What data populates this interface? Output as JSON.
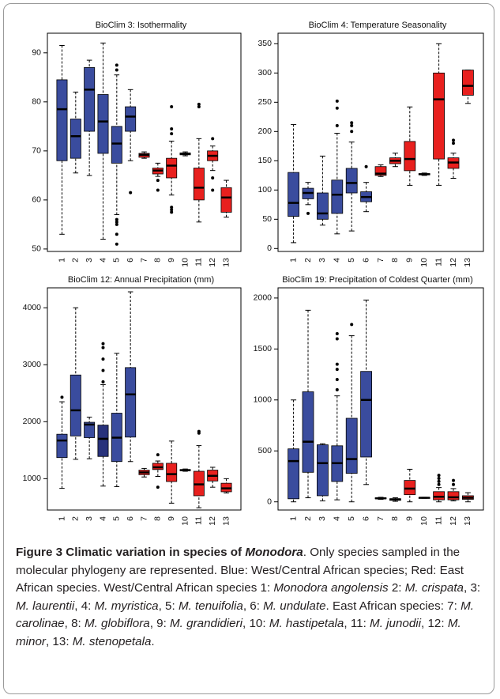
{
  "chart_data": [
    {
      "type": "box",
      "title": "BioClim 3: Isothermality",
      "categories": [
        "1",
        "2",
        "3",
        "4",
        "5",
        "6",
        "7",
        "8",
        "9",
        "10",
        "11",
        "12",
        "13"
      ],
      "box_colors": [
        "#3a4c9e",
        "#3a4c9e",
        "#3a4c9e",
        "#3a4c9e",
        "#3a4c9e",
        "#3a4c9e",
        "#e8201e",
        "#e8201e",
        "#e8201e",
        "#e8201e",
        "#e8201e",
        "#e8201e",
        "#e8201e"
      ],
      "ylim": [
        49.5,
        94
      ],
      "yticks": [
        50,
        60,
        70,
        80,
        90
      ],
      "boxes": [
        {
          "whislo": 53,
          "q1": 68,
          "med": 78.5,
          "q3": 84.5,
          "whishi": 91.5
        },
        {
          "whislo": 65.5,
          "q1": 68.5,
          "med": 73,
          "q3": 76.5,
          "whishi": 82
        },
        {
          "whislo": 65,
          "q1": 74,
          "med": 82.5,
          "q3": 87,
          "whishi": 88.5
        },
        {
          "whislo": 52,
          "q1": 69.5,
          "med": 76,
          "q3": 81.5,
          "whishi": 92
        },
        {
          "whislo": 57,
          "q1": 67.5,
          "med": 71.5,
          "q3": 75,
          "whishi": 85.5,
          "fliers": [
            51,
            53,
            55,
            55.5,
            56,
            86.5,
            87.5
          ]
        },
        {
          "whislo": 68,
          "q1": 74,
          "med": 77,
          "q3": 79,
          "whishi": 82.5,
          "fliers": [
            61.5
          ]
        },
        {
          "whislo": 68.5,
          "q1": 68.7,
          "med": 69.2,
          "q3": 69.5,
          "whishi": 69.8
        },
        {
          "whislo": 64.8,
          "q1": 65.3,
          "med": 66,
          "q3": 66.5,
          "whishi": 67.5,
          "fliers": [
            62,
            64
          ]
        },
        {
          "whislo": 61,
          "q1": 64.5,
          "med": 67,
          "q3": 68.5,
          "whishi": 72,
          "fliers": [
            57.5,
            58,
            58.5,
            73.5,
            74.5,
            79
          ]
        },
        {
          "whislo": 69,
          "q1": 69.2,
          "med": 69.4,
          "q3": 69.6,
          "whishi": 69.8
        },
        {
          "whislo": 55.5,
          "q1": 60,
          "med": 62.5,
          "q3": 66.5,
          "whishi": 72.5,
          "fliers": [
            79,
            79.5
          ]
        },
        {
          "whislo": 66,
          "q1": 68,
          "med": 69,
          "q3": 70,
          "whishi": 71,
          "fliers": [
            72.5,
            64.5,
            62
          ]
        },
        {
          "whislo": 56.5,
          "q1": 57.5,
          "med": 60.5,
          "q3": 62.5,
          "whishi": 64
        }
      ]
    },
    {
      "type": "box",
      "title": "BioClim 4: Temperature Seasonality",
      "categories": [
        "1",
        "2",
        "3",
        "4",
        "5",
        "6",
        "7",
        "8",
        "9",
        "10",
        "11",
        "12",
        "13"
      ],
      "box_colors": [
        "#3a4c9e",
        "#3a4c9e",
        "#3a4c9e",
        "#3a4c9e",
        "#3a4c9e",
        "#3a4c9e",
        "#e8201e",
        "#e8201e",
        "#e8201e",
        "#e8201e",
        "#e8201e",
        "#e8201e",
        "#e8201e"
      ],
      "ylim": [
        -5,
        368
      ],
      "yticks": [
        0,
        50,
        100,
        150,
        200,
        250,
        300,
        350
      ],
      "boxes": [
        {
          "whislo": 10,
          "q1": 55,
          "med": 78,
          "q3": 130,
          "whishi": 212
        },
        {
          "whislo": 75,
          "q1": 85,
          "med": 95,
          "q3": 103,
          "whishi": 113,
          "fliers": [
            60
          ]
        },
        {
          "whislo": 40,
          "q1": 50,
          "med": 60,
          "q3": 95,
          "whishi": 158
        },
        {
          "whislo": 25,
          "q1": 60,
          "med": 92,
          "q3": 117,
          "whishi": 197,
          "fliers": [
            210,
            240,
            252
          ]
        },
        {
          "whislo": 30,
          "q1": 95,
          "med": 112,
          "q3": 137,
          "whishi": 182,
          "fliers": [
            200,
            210,
            215
          ]
        },
        {
          "whislo": 63,
          "q1": 80,
          "med": 88,
          "q3": 97,
          "whishi": 113,
          "fliers": [
            140
          ]
        },
        {
          "whislo": 123,
          "q1": 125,
          "med": 128,
          "q3": 140,
          "whishi": 143
        },
        {
          "whislo": 140,
          "q1": 145,
          "med": 150,
          "q3": 155,
          "whishi": 163
        },
        {
          "whislo": 108,
          "q1": 133,
          "med": 153,
          "q3": 183,
          "whishi": 242
        },
        {
          "whislo": 125,
          "q1": 126,
          "med": 127,
          "q3": 128,
          "whishi": 129
        },
        {
          "whislo": 108,
          "q1": 153,
          "med": 255,
          "q3": 300,
          "whishi": 350
        },
        {
          "whislo": 120,
          "q1": 137,
          "med": 147,
          "q3": 155,
          "whishi": 163,
          "fliers": [
            185,
            180
          ]
        },
        {
          "whislo": 248,
          "q1": 262,
          "med": 278,
          "q3": 305,
          "whishi": 305
        }
      ]
    },
    {
      "type": "box",
      "title": "BioClim 12: Annual Precipitation (mm)",
      "categories": [
        "1",
        "2",
        "3",
        "4",
        "5",
        "6",
        "7",
        "8",
        "9",
        "10",
        "11",
        "12",
        "13"
      ],
      "box_colors": [
        "#3a4c9e",
        "#3a4c9e",
        "#3a4c9e",
        "#28327c",
        "#3a4c9e",
        "#3a4c9e",
        "#e8201e",
        "#e8201e",
        "#e8201e",
        "#e8201e",
        "#e8201e",
        "#e8201e",
        "#e8201e"
      ],
      "ylim": [
        450,
        4350
      ],
      "yticks": [
        1000,
        2000,
        3000,
        4000
      ],
      "boxes": [
        {
          "whislo": 830,
          "q1": 1370,
          "med": 1670,
          "q3": 1780,
          "whishi": 2350,
          "fliers": [
            2430
          ]
        },
        {
          "whislo": 1340,
          "q1": 1750,
          "med": 2200,
          "q3": 2820,
          "whishi": 4000
        },
        {
          "whislo": 1350,
          "q1": 1720,
          "med": 1950,
          "q3": 1990,
          "whishi": 2080
        },
        {
          "whislo": 870,
          "q1": 1390,
          "med": 1700,
          "q3": 1940,
          "whishi": 2650,
          "fliers": [
            2700,
            2900,
            3100,
            3300,
            3370
          ]
        },
        {
          "whislo": 860,
          "q1": 1300,
          "med": 1720,
          "q3": 2150,
          "whishi": 3200
        },
        {
          "whislo": 1300,
          "q1": 1730,
          "med": 2480,
          "q3": 2950,
          "whishi": 4280
        },
        {
          "whislo": 1030,
          "q1": 1070,
          "med": 1110,
          "q3": 1150,
          "whishi": 1180
        },
        {
          "whislo": 1040,
          "q1": 1160,
          "med": 1200,
          "q3": 1270,
          "whishi": 1310,
          "fliers": [
            850,
            1420
          ]
        },
        {
          "whislo": 570,
          "q1": 950,
          "med": 1080,
          "q3": 1270,
          "whishi": 1660
        },
        {
          "whislo": 1130,
          "q1": 1140,
          "med": 1150,
          "q3": 1160,
          "whishi": 1170
        },
        {
          "whislo": 490,
          "q1": 700,
          "med": 900,
          "q3": 1130,
          "whishi": 1580,
          "fliers": [
            1800,
            1830
          ]
        },
        {
          "whislo": 850,
          "q1": 960,
          "med": 1050,
          "q3": 1150,
          "whishi": 1200
        },
        {
          "whislo": 750,
          "q1": 770,
          "med": 830,
          "q3": 920,
          "whishi": 1000
        }
      ]
    },
    {
      "type": "box",
      "title": "BioClim 19: Precipitation of Coldest Quarter (mm)",
      "categories": [
        "1",
        "2",
        "3",
        "4",
        "5",
        "6",
        "7",
        "8",
        "9",
        "10",
        "11",
        "12",
        "13"
      ],
      "box_colors": [
        "#3a4c9e",
        "#3a4c9e",
        "#3a4c9e",
        "#3a4c9e",
        "#3a4c9e",
        "#3a4c9e",
        "#e8201e",
        "#e8201e",
        "#e8201e",
        "#e8201e",
        "#e8201e",
        "#e8201e",
        "#e8201e"
      ],
      "ylim": [
        -80,
        2100
      ],
      "yticks": [
        0,
        500,
        1000,
        1500,
        2000
      ],
      "boxes": [
        {
          "whislo": 0,
          "q1": 30,
          "med": 400,
          "q3": 520,
          "whishi": 1000
        },
        {
          "whislo": 40,
          "q1": 290,
          "med": 590,
          "q3": 1080,
          "whishi": 1880
        },
        {
          "whislo": 10,
          "q1": 60,
          "med": 380,
          "q3": 560,
          "whishi": 570
        },
        {
          "whislo": 20,
          "q1": 200,
          "med": 380,
          "q3": 550,
          "whishi": 1040,
          "fliers": [
            1100,
            1200,
            1300,
            1350,
            1600,
            1650
          ]
        },
        {
          "whislo": 0,
          "q1": 280,
          "med": 420,
          "q3": 820,
          "whishi": 1630,
          "fliers": [
            1740
          ]
        },
        {
          "whislo": 170,
          "q1": 440,
          "med": 1000,
          "q3": 1280,
          "whishi": 1980
        },
        {
          "whislo": 25,
          "q1": 30,
          "med": 35,
          "q3": 40,
          "whishi": 45
        },
        {
          "whislo": 5,
          "q1": 15,
          "med": 25,
          "q3": 30,
          "whishi": 40
        },
        {
          "whislo": 0,
          "q1": 70,
          "med": 130,
          "q3": 210,
          "whishi": 320
        },
        {
          "whislo": 35,
          "q1": 38,
          "med": 40,
          "q3": 42,
          "whishi": 45
        },
        {
          "whislo": 0,
          "q1": 20,
          "med": 50,
          "q3": 100,
          "whishi": 140,
          "fliers": [
            170,
            200,
            230,
            260
          ]
        },
        {
          "whislo": 10,
          "q1": 20,
          "med": 45,
          "q3": 100,
          "whishi": 130,
          "fliers": [
            170,
            210
          ]
        },
        {
          "whislo": 0,
          "q1": 25,
          "med": 40,
          "q3": 60,
          "whishi": 90
        }
      ]
    }
  ],
  "caption": [
    {
      "text": "Figure 3 Climatic variation in species of ",
      "style": "bold"
    },
    {
      "text": "Monodora",
      "style": "bold-italic"
    },
    {
      "text": ". Only species sampled in the molecular phylogeny are represented. Blue: West/Central African species; Red: East African species. West/Central African species 1: ",
      "style": "normal"
    },
    {
      "text": "Monodora angolensis",
      "style": "italic"
    },
    {
      "text": " 2: ",
      "style": "normal"
    },
    {
      "text": "M. crispata",
      "style": "italic"
    },
    {
      "text": ", 3: ",
      "style": "normal"
    },
    {
      "text": "M. laurentii",
      "style": "italic"
    },
    {
      "text": ", 4: ",
      "style": "normal"
    },
    {
      "text": "M. myristica",
      "style": "italic"
    },
    {
      "text": ", 5: ",
      "style": "normal"
    },
    {
      "text": "M. tenuifolia",
      "style": "italic"
    },
    {
      "text": ", 6: ",
      "style": "normal"
    },
    {
      "text": "M. undulate",
      "style": "italic"
    },
    {
      "text": ". East African species: 7: ",
      "style": "normal"
    },
    {
      "text": "M. carolinae",
      "style": "italic"
    },
    {
      "text": ", 8: ",
      "style": "normal"
    },
    {
      "text": "M. globiflora",
      "style": "italic"
    },
    {
      "text": ", 9: ",
      "style": "normal"
    },
    {
      "text": "M. grandidieri",
      "style": "italic"
    },
    {
      "text": ", 10: ",
      "style": "normal"
    },
    {
      "text": "M. hastipetala",
      "style": "italic"
    },
    {
      "text": ", 11: ",
      "style": "normal"
    },
    {
      "text": "M. junodii",
      "style": "italic"
    },
    {
      "text": ", 12: ",
      "style": "normal"
    },
    {
      "text": "M. minor",
      "style": "italic"
    },
    {
      "text": ", 13: ",
      "style": "normal"
    },
    {
      "text": "M. stenopetala",
      "style": "italic"
    },
    {
      "text": ".",
      "style": "normal"
    }
  ]
}
